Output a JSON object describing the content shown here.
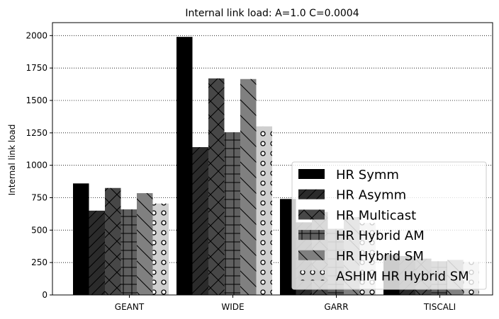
{
  "chart_data": {
    "type": "bar",
    "title": "Internal link load: A=1.0 C=0.0004",
    "xlabel": "",
    "ylabel": "Internal link load",
    "categories": [
      "GEANT",
      "WIDE",
      "GARR",
      "TISCALI"
    ],
    "ylim": [
      0,
      2100
    ],
    "yticks": [
      0,
      250,
      500,
      750,
      1000,
      1250,
      1500,
      1750,
      2000
    ],
    "grid": "y-dotted",
    "legend_position": "lower-right",
    "series": [
      {
        "name": "HR Symm",
        "values": [
          860,
          1990,
          740,
          310
        ],
        "color": "#000000",
        "pattern": "solid"
      },
      {
        "name": "HR Asymm",
        "values": [
          650,
          1140,
          560,
          300
        ],
        "color": "#2b2b2b",
        "pattern": "diag-forward"
      },
      {
        "name": "HR Multicast",
        "values": [
          825,
          1670,
          640,
          280
        ],
        "color": "#474747",
        "pattern": "cross-diag"
      },
      {
        "name": "HR Hybrid AM",
        "values": [
          660,
          1255,
          510,
          260
        ],
        "color": "#606060",
        "pattern": "grid"
      },
      {
        "name": "HR Hybrid SM",
        "values": [
          785,
          1665,
          600,
          270
        ],
        "color": "#808080",
        "pattern": "diag-back"
      },
      {
        "name": "ASHIM HR Hybrid SM",
        "values": [
          705,
          1300,
          555,
          255
        ],
        "color": "#cfcfcf",
        "pattern": "circles"
      }
    ]
  }
}
